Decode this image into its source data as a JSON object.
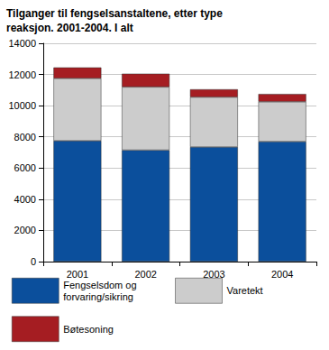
{
  "chart_data": {
    "type": "bar",
    "stacked": true,
    "title": "Tilganger til fengselsanstaltene, etter type reaksjon. 2001-2004. I alt",
    "categories": [
      "2001",
      "2002",
      "2003",
      "2004"
    ],
    "series": [
      {
        "name": "Fengselsdom og forvaring/sikring",
        "color": "#0b4f9c",
        "values": [
          7750,
          7150,
          7350,
          7700
        ]
      },
      {
        "name": "Varetekt",
        "color": "#cccccc",
        "values": [
          4000,
          4050,
          3200,
          2550
        ]
      },
      {
        "name": "Bøtesoning",
        "color": "#a51d22",
        "values": [
          700,
          850,
          500,
          500
        ]
      }
    ],
    "ylim": [
      0,
      14000
    ],
    "yticks": [
      0,
      2000,
      4000,
      6000,
      8000,
      10000,
      12000,
      14000
    ],
    "grid": true,
    "legend": "bottom"
  }
}
